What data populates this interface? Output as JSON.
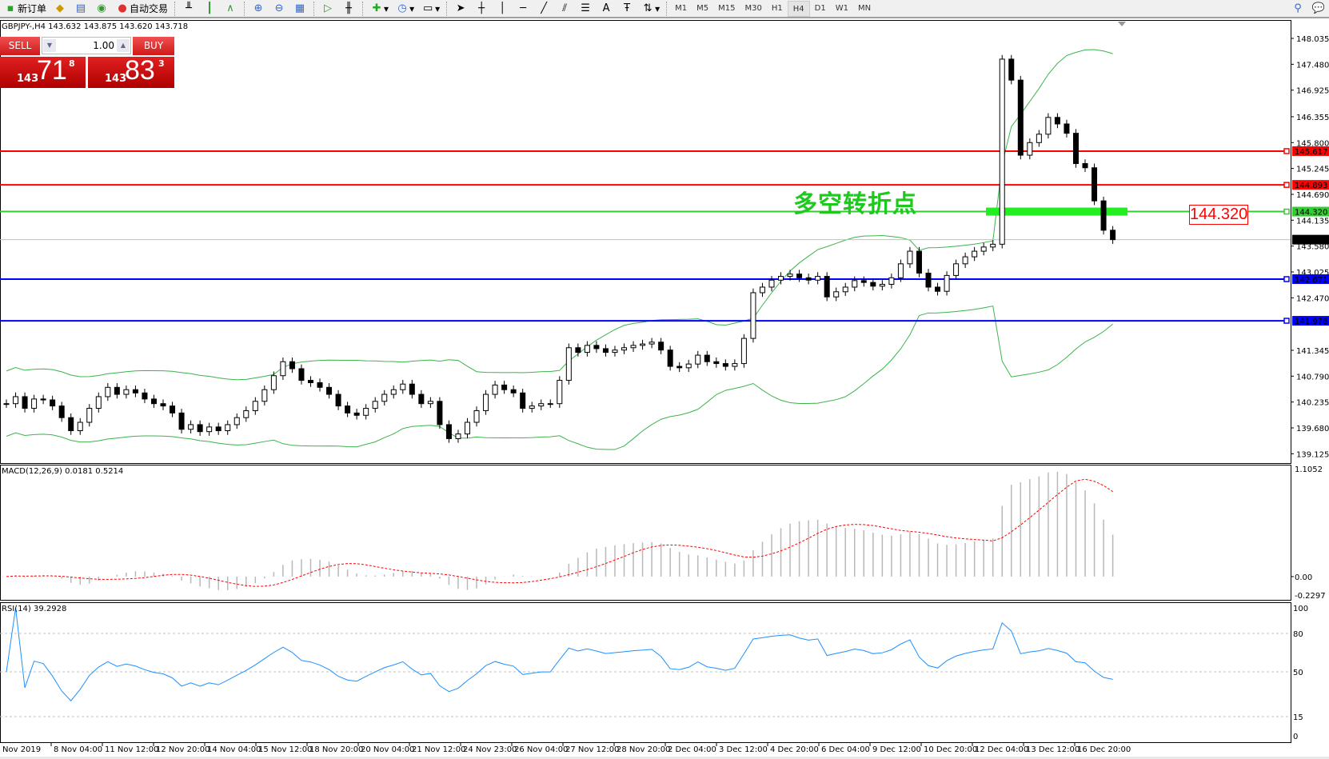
{
  "toolbar": {
    "new_order": "新订单",
    "auto_trading": "自动交易",
    "timeframes": [
      "M1",
      "M5",
      "M15",
      "M30",
      "H1",
      "H4",
      "D1",
      "W1",
      "MN"
    ],
    "active_timeframe": "H4"
  },
  "symbol_line": "GBPJPY-,H4  143.632 143.875 143.620 143.718",
  "trade_panel": {
    "sell": "SELL",
    "buy": "BUY",
    "lots": "1.00",
    "sell_price": {
      "prefix": "143",
      "big": "71",
      "sup": "8"
    },
    "buy_price": {
      "prefix": "143",
      "big": "83",
      "sup": "3"
    }
  },
  "annotation": "多空转折点",
  "level_box": "144.320",
  "macd_label": "MACD(12,26,9) 0.0181 0.5214",
  "rsi_label": "RSI(14) 39.2928",
  "colors": {
    "resistance": "#ff0000",
    "pivot": "#33cc33",
    "support": "#0000ff",
    "bands": "#3cb44b",
    "macd_signal": "#ff0000",
    "rsi": "#1e90ff"
  },
  "chart_data": {
    "type": "candlestick",
    "symbol": "GBPJPY-",
    "timeframe": "H4",
    "price_ticks": [
      148.035,
      147.48,
      146.925,
      146.355,
      145.8,
      145.245,
      144.69,
      144.135,
      143.58,
      143.025,
      142.47,
      141.345,
      140.79,
      140.235,
      139.68,
      139.125
    ],
    "price_range": [
      139.125,
      148.035
    ],
    "horizontal_lines": [
      {
        "price": 145.617,
        "color": "#ff0000",
        "label": "145.617"
      },
      {
        "price": 144.893,
        "color": "#ff0000",
        "label": "144.893"
      },
      {
        "price": 144.32,
        "color": "#33cc33",
        "label": "144.320"
      },
      {
        "price": 142.871,
        "color": "#0000ff",
        "label": "142.871"
      },
      {
        "price": 141.978,
        "color": "#0000ff",
        "label": "141.978"
      }
    ],
    "current_price": {
      "price": 143.718,
      "label": "143.718"
    },
    "time_labels": [
      "Nov 2019",
      "8 Nov 04:00",
      "11 Nov 12:00",
      "12 Nov 20:00",
      "14 Nov 04:00",
      "15 Nov 12:00",
      "18 Nov 20:00",
      "20 Nov 04:00",
      "21 Nov 12:00",
      "24 Nov 23:00",
      "26 Nov 04:00",
      "27 Nov 12:00",
      "28 Nov 20:00",
      "2 Dec 04:00",
      "3 Dec 12:00",
      "4 Dec 20:00",
      "6 Dec 04:00",
      "9 Dec 12:00",
      "10 Dec 20:00",
      "12 Dec 04:00",
      "13 Dec 12:00",
      "16 Dec 20:00"
    ],
    "closes": [
      140.2,
      140.35,
      140.1,
      140.3,
      140.28,
      140.15,
      139.9,
      139.62,
      139.8,
      140.1,
      140.35,
      140.55,
      140.4,
      140.5,
      140.43,
      140.3,
      140.2,
      140.15,
      140.0,
      139.65,
      139.75,
      139.6,
      139.7,
      139.62,
      139.75,
      139.9,
      140.05,
      140.25,
      140.5,
      140.8,
      141.1,
      140.95,
      140.7,
      140.65,
      140.55,
      140.4,
      140.15,
      140.0,
      139.95,
      140.1,
      140.25,
      140.4,
      140.5,
      140.62,
      140.4,
      140.2,
      140.25,
      139.75,
      139.45,
      139.55,
      139.8,
      140.05,
      140.4,
      140.6,
      140.5,
      140.43,
      140.1,
      140.15,
      140.2,
      140.2,
      140.7,
      141.4,
      141.3,
      141.45,
      141.38,
      141.3,
      141.35,
      141.4,
      141.45,
      141.48,
      141.52,
      141.35,
      141.0,
      140.97,
      141.05,
      141.24,
      141.1,
      141.06,
      141.0,
      141.06,
      141.6,
      142.58,
      142.7,
      142.85,
      142.93,
      142.98,
      142.9,
      142.85,
      142.93,
      142.49,
      142.6,
      142.7,
      142.84,
      142.8,
      142.72,
      142.76,
      142.9,
      143.2,
      143.47,
      143.0,
      142.7,
      142.61,
      142.95,
      143.2,
      143.35,
      143.47,
      143.56,
      143.62,
      147.59,
      147.14,
      145.53,
      145.8,
      145.98,
      146.34,
      146.2,
      146.0,
      145.35,
      145.26,
      144.55,
      143.92,
      143.718
    ],
    "macd": {
      "params": "12,26,9",
      "ticks": [
        "1.1052",
        "0.00",
        "-0.2297"
      ],
      "range": [
        -0.2297,
        1.1052
      ]
    },
    "rsi": {
      "period": 14,
      "ticks": [
        "100",
        "80",
        "50",
        "15",
        "0"
      ],
      "levels": [
        80,
        50,
        15
      ],
      "range": [
        0,
        100
      ]
    }
  }
}
